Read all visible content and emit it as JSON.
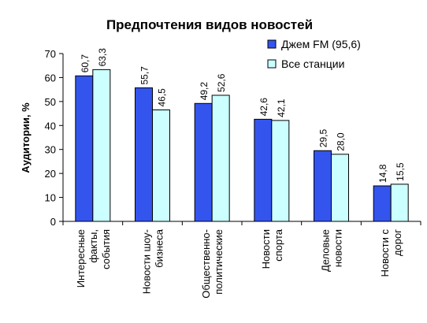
{
  "chart_data": {
    "type": "bar",
    "title": "Предпочтения видов новостей",
    "xlabel": "",
    "ylabel": "Аудитории, %",
    "ylim": [
      0,
      70
    ],
    "yticks": [
      0,
      10,
      20,
      30,
      40,
      50,
      60,
      70
    ],
    "grid": false,
    "legend_position": "top-right",
    "categories": [
      [
        "Интересные",
        "факты,",
        "события"
      ],
      [
        "Новости шоу-",
        "бизнеса"
      ],
      [
        "Общественно-",
        "политические"
      ],
      [
        "Новости",
        "спорта"
      ],
      [
        "Деловые",
        "новости"
      ],
      [
        "Новости с",
        "дорог"
      ]
    ],
    "series": [
      {
        "name": "Джем FM (95,6)",
        "color": "#3355ee",
        "values": [
          60.7,
          55.7,
          49.2,
          42.6,
          29.5,
          14.8
        ],
        "labels": [
          "60,7",
          "55,7",
          "49,2",
          "42,6",
          "29,5",
          "14,8"
        ]
      },
      {
        "name": "Все станции",
        "color": "#ccffff",
        "values": [
          63.3,
          46.5,
          52.6,
          42.1,
          28.0,
          15.5
        ],
        "labels": [
          "63,3",
          "46,5",
          "52,6",
          "42,1",
          "28,0",
          "15,5"
        ]
      }
    ]
  }
}
